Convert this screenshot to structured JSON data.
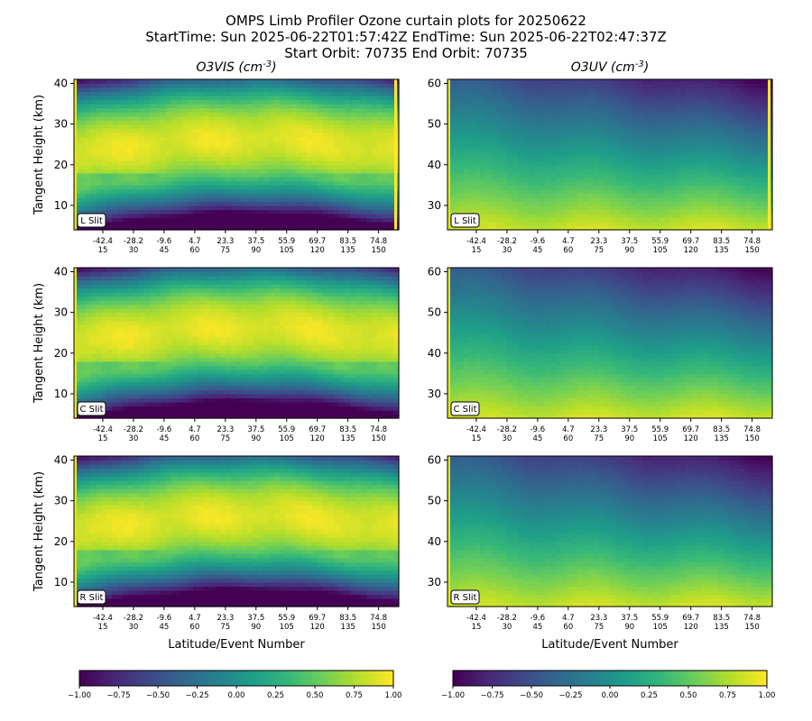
{
  "figure": {
    "title_line1": "OMPS Limb Profiler Ozone curtain plots for 20250622",
    "title_line2": "StartTime: Sun 2025-06-22T01:57:42Z  EndTime: Sun 2025-06-22T02:47:37Z",
    "title_line3": "Start Orbit: 70735 End Orbit: 70735"
  },
  "chart_data": [
    {
      "type": "heatmap",
      "id": "vis_L",
      "column_title": "O3VIS (cm^-3)",
      "slit_label": "L Slit",
      "ylabel": "Tangent Height (km)",
      "xlabel": "",
      "ylim": [
        4,
        41
      ],
      "yticks": [
        10,
        20,
        30,
        40
      ],
      "xticks_lat": [
        "-42.4",
        "-28.2",
        "-9.6",
        "4.7",
        "23.3",
        "37.5",
        "55.9",
        "69.7",
        "83.5",
        "74.8"
      ],
      "xticks_event": [
        "15",
        "30",
        "45",
        "60",
        "75",
        "90",
        "105",
        "120",
        "135",
        "150"
      ],
      "colormap": "viridis",
      "clim": [
        -1.0,
        1.0
      ]
    },
    {
      "type": "heatmap",
      "id": "uv_L",
      "column_title": "O3UV (cm^-3)",
      "slit_label": "L Slit",
      "ylabel": "",
      "xlabel": "",
      "ylim": [
        24,
        61
      ],
      "yticks": [
        30,
        40,
        50,
        60
      ],
      "xticks_lat": [
        "-42.4",
        "-28.2",
        "-9.6",
        "4.7",
        "23.3",
        "37.5",
        "55.9",
        "69.7",
        "83.5",
        "74.8"
      ],
      "xticks_event": [
        "15",
        "30",
        "45",
        "60",
        "75",
        "90",
        "105",
        "120",
        "135",
        "150"
      ],
      "colormap": "viridis",
      "clim": [
        -1.0,
        1.0
      ]
    },
    {
      "type": "heatmap",
      "id": "vis_C",
      "column_title": "",
      "slit_label": "C Slit",
      "ylabel": "Tangent Height (km)",
      "xlabel": "",
      "ylim": [
        4,
        41
      ],
      "yticks": [
        10,
        20,
        30,
        40
      ],
      "xticks_lat": [
        "-42.4",
        "-28.2",
        "-9.6",
        "4.7",
        "23.3",
        "37.5",
        "55.9",
        "69.7",
        "83.5",
        "74.8"
      ],
      "xticks_event": [
        "15",
        "30",
        "45",
        "60",
        "75",
        "90",
        "105",
        "120",
        "135",
        "150"
      ],
      "colormap": "viridis",
      "clim": [
        -1.0,
        1.0
      ]
    },
    {
      "type": "heatmap",
      "id": "uv_C",
      "column_title": "",
      "slit_label": "C Slit",
      "ylabel": "",
      "xlabel": "",
      "ylim": [
        24,
        61
      ],
      "yticks": [
        30,
        40,
        50,
        60
      ],
      "xticks_lat": [
        "-42.4",
        "-28.2",
        "-9.6",
        "4.7",
        "23.3",
        "37.5",
        "55.9",
        "69.7",
        "83.5",
        "74.8"
      ],
      "xticks_event": [
        "15",
        "30",
        "45",
        "60",
        "75",
        "90",
        "105",
        "120",
        "135",
        "150"
      ],
      "colormap": "viridis",
      "clim": [
        -1.0,
        1.0
      ]
    },
    {
      "type": "heatmap",
      "id": "vis_R",
      "column_title": "",
      "slit_label": "R Slit",
      "ylabel": "Tangent Height (km)",
      "xlabel": "Latitude/Event Number",
      "ylim": [
        4,
        41
      ],
      "yticks": [
        10,
        20,
        30,
        40
      ],
      "xticks_lat": [
        "-42.4",
        "-28.2",
        "-9.6",
        "4.7",
        "23.3",
        "37.5",
        "55.9",
        "69.7",
        "83.5",
        "74.8"
      ],
      "xticks_event": [
        "15",
        "30",
        "45",
        "60",
        "75",
        "90",
        "105",
        "120",
        "135",
        "150"
      ],
      "colormap": "viridis",
      "clim": [
        -1.0,
        1.0
      ]
    },
    {
      "type": "heatmap",
      "id": "uv_R",
      "column_title": "",
      "slit_label": "R Slit",
      "ylabel": "",
      "xlabel": "Latitude/Event Number",
      "ylim": [
        24,
        61
      ],
      "yticks": [
        30,
        40,
        50,
        60
      ],
      "xticks_lat": [
        "-42.4",
        "-28.2",
        "-9.6",
        "4.7",
        "23.3",
        "37.5",
        "55.9",
        "69.7",
        "83.5",
        "74.8"
      ],
      "xticks_event": [
        "15",
        "30",
        "45",
        "60",
        "75",
        "90",
        "105",
        "120",
        "135",
        "150"
      ],
      "colormap": "viridis",
      "clim": [
        -1.0,
        1.0
      ]
    }
  ],
  "colorbars": [
    {
      "id": "cbar_vis",
      "colormap": "viridis",
      "range": [
        -1.0,
        1.0
      ],
      "tick_values": [
        -1.0,
        -0.75,
        -0.5,
        -0.25,
        0.0,
        0.25,
        0.5,
        0.75,
        1.0
      ],
      "tick_labels": [
        "−1.00",
        "−0.75",
        "−0.50",
        "−0.25",
        "0.00",
        "0.25",
        "0.50",
        "0.75",
        "1.00"
      ]
    },
    {
      "id": "cbar_uv",
      "colormap": "viridis",
      "range": [
        -1.0,
        1.0
      ],
      "tick_values": [
        -1.0,
        -0.75,
        -0.5,
        -0.25,
        0.0,
        0.25,
        0.5,
        0.75,
        1.0
      ],
      "tick_labels": [
        "−1.00",
        "−0.75",
        "−0.50",
        "−0.25",
        "0.00",
        "0.25",
        "0.50",
        "0.75",
        "1.00"
      ]
    }
  ]
}
